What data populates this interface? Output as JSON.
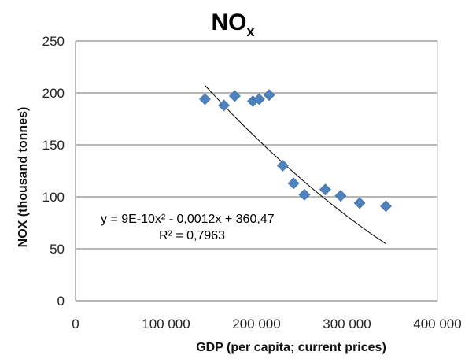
{
  "chart_data": {
    "type": "scatter",
    "title_main": "NO",
    "title_sub": "x",
    "xlabel": "GDP (per capita; current prices)",
    "ylabel": "NOX (thousand  tonnes)",
    "xlim": [
      0,
      400000
    ],
    "ylim": [
      0,
      250
    ],
    "x_ticks": [
      0,
      100000,
      200000,
      300000,
      400000
    ],
    "x_tick_labels": [
      "0",
      "100 000",
      "200 000",
      "300 000",
      "400 000"
    ],
    "y_ticks": [
      0,
      50,
      100,
      150,
      200,
      250
    ],
    "y_tick_labels": [
      "0",
      "50",
      "100",
      "150",
      "200",
      "250"
    ],
    "grid": "horizontal",
    "marker_color": "#4f81bd",
    "series": [
      {
        "x": [
          143000,
          164000,
          176000,
          196000,
          203000,
          214000,
          229000,
          241000,
          253000,
          276000,
          293000,
          314000,
          343000
        ],
        "y": [
          194,
          188,
          197,
          192,
          194,
          198,
          130,
          113,
          102,
          107,
          101,
          94,
          91
        ]
      }
    ],
    "trendline": {
      "type": "polynomial",
      "a": 9e-10,
      "b": -0.0012,
      "c": 360.47,
      "x_range": [
        143000,
        343000
      ],
      "equation_text": "y = 9E-10x² - 0,0012x + 360,47",
      "r2_text": "R² = 0,7963"
    }
  }
}
